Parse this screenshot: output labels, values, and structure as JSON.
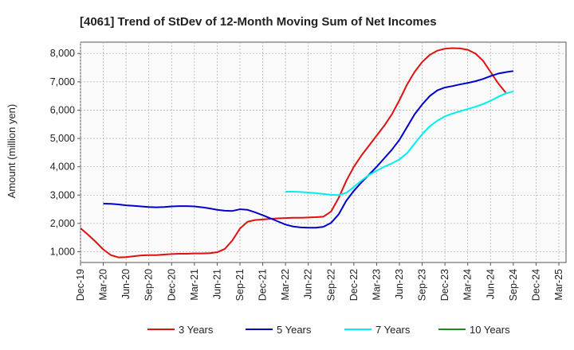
{
  "chart_data": {
    "type": "line",
    "title": "[4061]  Trend of StDev of 12-Month Moving Sum of Net Incomes",
    "ylabel": "Amount (million yen)",
    "xlabel": "",
    "ylim": [
      620,
      8400
    ],
    "yticks": [
      1000,
      2000,
      3000,
      4000,
      5000,
      6000,
      7000,
      8000
    ],
    "ytick_labels": [
      "1,000",
      "2,000",
      "3,000",
      "4,000",
      "5,000",
      "6,000",
      "7,000",
      "8,000"
    ],
    "x_tick_labels": [
      "Dec-19",
      "Mar-20",
      "Jun-20",
      "Sep-20",
      "Dec-20",
      "Mar-21",
      "Jun-21",
      "Sep-21",
      "Dec-21",
      "Mar-22",
      "Jun-22",
      "Sep-22",
      "Dec-22",
      "Mar-23",
      "Jun-23",
      "Sep-23",
      "Dec-23",
      "Mar-24",
      "Jun-24",
      "Sep-24",
      "Dec-24",
      "Mar-25"
    ],
    "grid": true,
    "legend_position": "bottom",
    "series": [
      {
        "name": "3 Years",
        "color": "#dd1111",
        "start_month_index": 0,
        "values": [
          1830,
          1600,
          1350,
          1080,
          880,
          800,
          810,
          840,
          870,
          880,
          880,
          900,
          920,
          930,
          930,
          940,
          940,
          950,
          980,
          1100,
          1400,
          1820,
          2060,
          2120,
          2140,
          2160,
          2180,
          2190,
          2200,
          2200,
          2210,
          2220,
          2240,
          2420,
          2900,
          3500,
          4000,
          4400,
          4750,
          5100,
          5450,
          5850,
          6350,
          6900,
          7350,
          7700,
          7950,
          8100,
          8170,
          8190,
          8180,
          8130,
          8000,
          7750,
          7350,
          6950,
          6620
        ]
      },
      {
        "name": "5 Years",
        "color": "#0000cc",
        "start_month_index": 3,
        "values": [
          2700,
          2690,
          2670,
          2640,
          2620,
          2600,
          2580,
          2570,
          2580,
          2600,
          2610,
          2610,
          2600,
          2570,
          2530,
          2480,
          2450,
          2440,
          2500,
          2480,
          2390,
          2290,
          2180,
          2070,
          1960,
          1890,
          1860,
          1850,
          1850,
          1880,
          2020,
          2320,
          2800,
          3150,
          3450,
          3720,
          4000,
          4300,
          4600,
          4950,
          5400,
          5850,
          6200,
          6500,
          6700,
          6800,
          6850,
          6910,
          6960,
          7020,
          7100,
          7200,
          7290,
          7340,
          7380
        ]
      },
      {
        "name": "7 Years",
        "color": "#00eeee",
        "start_month_index": 27,
        "values": [
          3120,
          3120,
          3110,
          3090,
          3070,
          3040,
          3010,
          3000,
          3080,
          3290,
          3510,
          3710,
          3860,
          4000,
          4120,
          4260,
          4480,
          4820,
          5150,
          5430,
          5630,
          5780,
          5880,
          5960,
          6040,
          6120,
          6210,
          6330,
          6470,
          6590,
          6660
        ]
      },
      {
        "name": "10 Years",
        "color": "#228822",
        "start_month_index": 0,
        "values": []
      }
    ]
  }
}
